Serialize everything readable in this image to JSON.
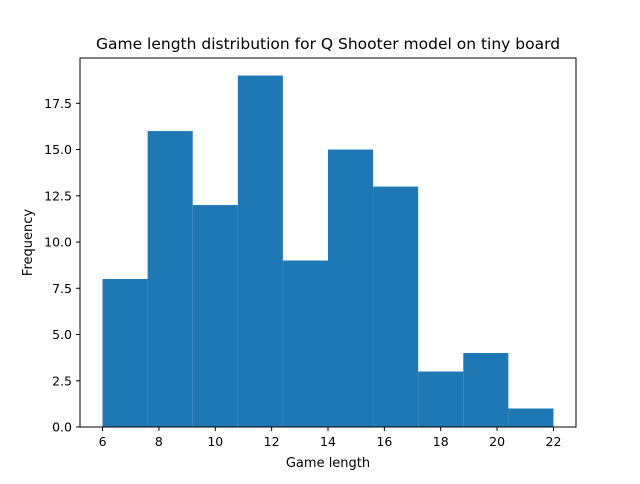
{
  "chart_data": {
    "type": "bar",
    "title": "Game length distribution for Q Shooter model on tiny board",
    "xlabel": "Game length",
    "ylabel": "Frequency",
    "bins": [
      {
        "start": 6.0,
        "end": 7.6,
        "count": 8
      },
      {
        "start": 7.6,
        "end": 9.2,
        "count": 16
      },
      {
        "start": 9.2,
        "end": 10.8,
        "count": 12
      },
      {
        "start": 10.8,
        "end": 12.4,
        "count": 19
      },
      {
        "start": 12.4,
        "end": 14.0,
        "count": 9
      },
      {
        "start": 14.0,
        "end": 15.6,
        "count": 15
      },
      {
        "start": 15.6,
        "end": 17.2,
        "count": 13
      },
      {
        "start": 17.2,
        "end": 18.8,
        "count": 3
      },
      {
        "start": 18.8,
        "end": 20.4,
        "count": 4
      },
      {
        "start": 20.4,
        "end": 22.0,
        "count": 1
      }
    ],
    "xlim": [
      5.2,
      22.8
    ],
    "ylim": [
      0,
      19.95
    ],
    "xticks": [
      6,
      8,
      10,
      12,
      14,
      16,
      18,
      20,
      22
    ],
    "xtick_labels": [
      "6",
      "8",
      "10",
      "12",
      "14",
      "16",
      "18",
      "20",
      "22"
    ],
    "yticks": [
      0,
      2.5,
      5,
      7.5,
      10,
      12.5,
      15,
      17.5
    ],
    "ytick_labels": [
      "0.0",
      "2.5",
      "5.0",
      "7.5",
      "10.0",
      "12.5",
      "15.0",
      "17.5"
    ],
    "grid": false,
    "legend": "none",
    "bar_color": "#1f77b4"
  }
}
